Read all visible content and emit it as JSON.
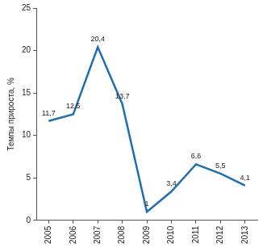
{
  "chart_data": {
    "type": "line",
    "y_label": "Темпы прироста, %",
    "categories": [
      "2005",
      "2006",
      "2007",
      "2008",
      "2009",
      "2010",
      "2011",
      "2012",
      "2013"
    ],
    "values": [
      11.7,
      12.5,
      20.4,
      13.7,
      1,
      3.4,
      6.6,
      5.5,
      4.1
    ],
    "value_labels": [
      "11,7",
      "12,5",
      "20,4",
      "13,7",
      "1",
      "3,4",
      "6,6",
      "5,5",
      "4,1"
    ],
    "color": "#1f6db3",
    "ylim": [
      0,
      25
    ],
    "yticks": [
      0,
      5,
      10,
      15,
      20,
      25
    ],
    "grid": false,
    "data_labels": true
  }
}
